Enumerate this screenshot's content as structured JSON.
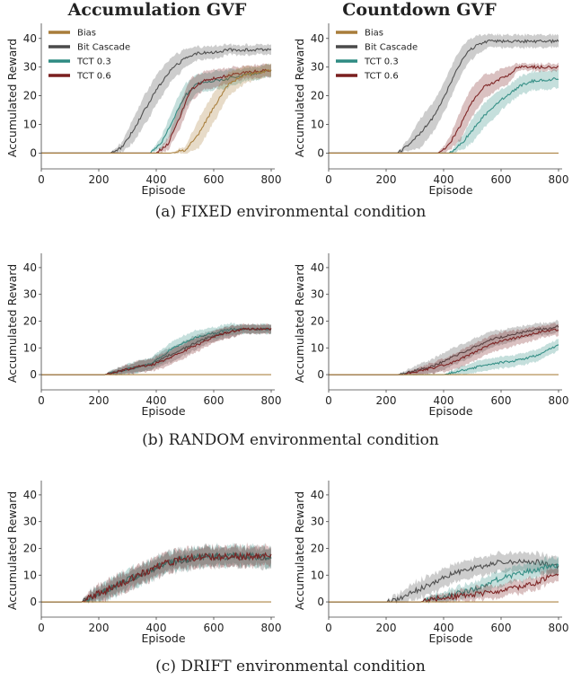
{
  "column_titles": [
    "Accumulation GVF",
    "Countdown GVF"
  ],
  "captions": [
    "(a)  FIXED environmental condition",
    "(b)  RANDOM environmental condition",
    "(c)  DRIFT environmental condition"
  ],
  "colors": {
    "Bias": "#a87d3a",
    "Bit Cascade": "#4a4a4a",
    "TCT 0.3": "#2e8b82",
    "TCT 0.6": "#7a1f1f"
  },
  "chart_data": [
    {
      "type": "line",
      "panel": "(a) Accumulation GVF",
      "xlabel": "Episode",
      "ylabel": "Accumulated Reward",
      "xlim": [
        0,
        800
      ],
      "ylim": [
        -3,
        44
      ],
      "xticks": [
        0,
        200,
        400,
        600,
        800
      ],
      "yticks": [
        0,
        10,
        20,
        30,
        40
      ],
      "legend": "top-left",
      "noise": 0.8,
      "series": [
        {
          "name": "Bias",
          "x": [
            0,
            450,
            500,
            550,
            600,
            650,
            700,
            750,
            800
          ],
          "y": [
            0,
            0,
            1,
            7,
            16,
            24,
            27,
            28,
            29
          ],
          "band": [
            0,
            0,
            1,
            5,
            5,
            4,
            3,
            2,
            2
          ]
        },
        {
          "name": "Bit Cascade",
          "x": [
            0,
            240,
            280,
            320,
            360,
            400,
            450,
            500,
            550,
            600,
            650,
            700,
            800
          ],
          "y": [
            0,
            0,
            2,
            8,
            15,
            22,
            29,
            33,
            35,
            35,
            36,
            36,
            36
          ],
          "band": [
            0,
            0,
            1.5,
            4,
            5,
            5,
            4,
            3,
            2,
            2,
            1.5,
            1.5,
            1.5
          ]
        },
        {
          "name": "TCT 0.3",
          "x": [
            0,
            380,
            420,
            460,
            500,
            540,
            580,
            650,
            700,
            800
          ],
          "y": [
            0,
            0,
            4,
            12,
            20,
            24,
            25,
            26,
            27,
            29
          ],
          "band": [
            0,
            0,
            2,
            4,
            4,
            3,
            3,
            3,
            2,
            2
          ]
        },
        {
          "name": "TCT 0.6",
          "x": [
            0,
            400,
            440,
            480,
            520,
            560,
            600,
            700,
            800
          ],
          "y": [
            0,
            0,
            3,
            12,
            22,
            25,
            26,
            28,
            29
          ],
          "band": [
            0,
            0,
            2,
            4,
            4,
            3,
            3,
            2,
            2
          ]
        }
      ]
    },
    {
      "type": "line",
      "panel": "(a) Countdown GVF",
      "xlabel": "Episode",
      "ylabel": "",
      "xlim": [
        0,
        800
      ],
      "ylim": [
        -3,
        44
      ],
      "xticks": [
        0,
        200,
        400,
        600,
        800
      ],
      "yticks": [
        0,
        10,
        20,
        30,
        40
      ],
      "legend": "top-left",
      "noise": 0.8,
      "series": [
        {
          "name": "Bias",
          "x": [
            0,
            800
          ],
          "y": [
            0,
            0
          ],
          "band": [
            0,
            0
          ]
        },
        {
          "name": "Bit Cascade",
          "x": [
            0,
            240,
            280,
            320,
            360,
            400,
            440,
            480,
            520,
            560,
            600,
            800
          ],
          "y": [
            0,
            0,
            3,
            7,
            12,
            19,
            28,
            35,
            38,
            39,
            39,
            39
          ],
          "band": [
            0,
            0,
            2,
            5,
            5,
            5,
            5,
            4,
            3,
            2,
            2,
            2
          ]
        },
        {
          "name": "TCT 0.3",
          "x": [
            0,
            420,
            460,
            500,
            540,
            580,
            620,
            660,
            700,
            800
          ],
          "y": [
            0,
            0,
            3,
            8,
            13,
            17,
            20,
            23,
            25,
            26
          ],
          "band": [
            0,
            0,
            2,
            4,
            4,
            4,
            3,
            3,
            3,
            3
          ]
        },
        {
          "name": "TCT 0.6",
          "x": [
            0,
            380,
            420,
            460,
            500,
            540,
            580,
            620,
            660,
            700,
            800
          ],
          "y": [
            0,
            0,
            3,
            10,
            18,
            23,
            25,
            27,
            30,
            30,
            30
          ],
          "band": [
            0,
            0,
            2,
            5,
            5,
            4,
            3,
            3,
            1,
            1,
            1
          ]
        }
      ]
    },
    {
      "type": "line",
      "panel": "(b) Accumulation GVF",
      "xlabel": "Episode",
      "ylabel": "Accumulated Reward",
      "xlim": [
        0,
        800
      ],
      "ylim": [
        -3,
        44
      ],
      "xticks": [
        0,
        200,
        400,
        600,
        800
      ],
      "yticks": [
        0,
        10,
        20,
        30,
        40
      ],
      "noise": 0.7,
      "series": [
        {
          "name": "Bias",
          "x": [
            0,
            800
          ],
          "y": [
            0,
            0
          ],
          "band": [
            0,
            0
          ]
        },
        {
          "name": "Bit Cascade",
          "x": [
            0,
            220,
            260,
            300,
            340,
            380,
            420,
            460,
            500,
            540,
            580,
            620,
            660,
            700,
            800
          ],
          "y": [
            0,
            0,
            1,
            2,
            3,
            4,
            6,
            8,
            10,
            12,
            14,
            15,
            16,
            17,
            17
          ],
          "band": [
            0,
            0,
            1,
            1.5,
            2,
            2,
            2.5,
            2.5,
            2.5,
            2.5,
            2,
            2,
            2,
            1.5,
            1.5
          ]
        },
        {
          "name": "TCT 0.3",
          "x": [
            0,
            220,
            260,
            300,
            340,
            380,
            420,
            460,
            500,
            540,
            580,
            620,
            660,
            700,
            800
          ],
          "y": [
            0,
            0,
            1,
            2,
            3,
            4,
            7,
            10,
            12,
            14,
            15,
            16,
            17,
            17,
            17
          ],
          "band": [
            0,
            0,
            1,
            1.5,
            2,
            2,
            2.5,
            2.5,
            2.5,
            2.5,
            2,
            2,
            2,
            1.5,
            1.5
          ]
        },
        {
          "name": "TCT 0.6",
          "x": [
            0,
            220,
            260,
            300,
            340,
            380,
            420,
            460,
            500,
            540,
            580,
            620,
            660,
            700,
            800
          ],
          "y": [
            0,
            0,
            1,
            2,
            3,
            3.5,
            5,
            7,
            9,
            11,
            13,
            15,
            16,
            17,
            17
          ],
          "band": [
            0,
            0,
            1,
            1.5,
            2,
            2,
            2.5,
            2.5,
            2.5,
            2.5,
            2,
            2,
            2,
            1.5,
            1.5
          ]
        }
      ]
    },
    {
      "type": "line",
      "panel": "(b) Countdown GVF",
      "xlabel": "Episode",
      "ylabel": "",
      "xlim": [
        0,
        800
      ],
      "ylim": [
        -3,
        44
      ],
      "xticks": [
        0,
        200,
        400,
        600,
        800
      ],
      "yticks": [
        0,
        10,
        20,
        30,
        40
      ],
      "noise": 0.7,
      "series": [
        {
          "name": "Bias",
          "x": [
            0,
            800
          ],
          "y": [
            0,
            0
          ],
          "band": [
            0,
            0
          ]
        },
        {
          "name": "Bit Cascade",
          "x": [
            0,
            240,
            280,
            320,
            360,
            400,
            440,
            480,
            520,
            560,
            600,
            640,
            680,
            720,
            760,
            800
          ],
          "y": [
            0,
            0,
            1,
            2,
            3,
            5,
            7,
            9,
            11,
            13,
            14,
            15,
            16,
            17,
            17,
            18
          ],
          "band": [
            0,
            0,
            1,
            2,
            2.5,
            3,
            3,
            3,
            3,
            3,
            2.5,
            2.5,
            2,
            2,
            2,
            2
          ]
        },
        {
          "name": "TCT 0.3",
          "x": [
            0,
            400,
            440,
            480,
            520,
            560,
            600,
            640,
            680,
            720,
            760,
            800
          ],
          "y": [
            0,
            0,
            1,
            2,
            3,
            4,
            4.5,
            5,
            6,
            7,
            9,
            11
          ],
          "band": [
            0,
            0,
            1,
            1.5,
            2,
            2,
            2,
            2,
            2,
            2,
            2,
            2
          ]
        },
        {
          "name": "TCT 0.6",
          "x": [
            0,
            260,
            300,
            340,
            380,
            420,
            460,
            500,
            540,
            580,
            620,
            660,
            700,
            740,
            800
          ],
          "y": [
            0,
            0,
            1,
            2,
            3,
            4,
            6,
            8,
            10,
            12,
            13,
            14,
            15,
            16,
            17
          ],
          "band": [
            0,
            0,
            1,
            1.5,
            2,
            2.5,
            3,
            3,
            3,
            3,
            3,
            2.5,
            2.5,
            2,
            2
          ]
        }
      ]
    },
    {
      "type": "line",
      "panel": "(c) Accumulation GVF",
      "xlabel": "Episode",
      "ylabel": "Accumulated Reward",
      "xlim": [
        0,
        800
      ],
      "ylim": [
        -3,
        44
      ],
      "xticks": [
        0,
        200,
        400,
        600,
        800
      ],
      "yticks": [
        0,
        10,
        20,
        30,
        40
      ],
      "noise": 2.2,
      "series": [
        {
          "name": "Bias",
          "x": [
            0,
            800
          ],
          "y": [
            0,
            0
          ],
          "band": [
            0,
            0
          ]
        },
        {
          "name": "Bit Cascade",
          "x": [
            0,
            140,
            180,
            220,
            260,
            300,
            340,
            380,
            420,
            460,
            500,
            560,
            620,
            700,
            800
          ],
          "y": [
            0,
            0,
            2,
            4,
            6,
            8,
            10,
            12,
            14,
            15,
            16,
            17,
            17,
            17,
            17
          ],
          "band": [
            0,
            0,
            2,
            2.5,
            3,
            3,
            3,
            3,
            3,
            3,
            3,
            3,
            3,
            3,
            3
          ]
        },
        {
          "name": "TCT 0.3",
          "x": [
            0,
            140,
            180,
            220,
            260,
            300,
            340,
            380,
            420,
            460,
            500,
            560,
            620,
            700,
            800
          ],
          "y": [
            0,
            0,
            2,
            4,
            6,
            8,
            10,
            12,
            14,
            15,
            16,
            17,
            17,
            17,
            17
          ],
          "band": [
            0,
            0,
            2,
            2.5,
            3,
            3,
            3,
            3,
            3,
            3,
            3,
            3,
            3,
            3,
            3
          ]
        },
        {
          "name": "TCT 0.6",
          "x": [
            0,
            140,
            180,
            220,
            260,
            300,
            340,
            380,
            420,
            460,
            500,
            560,
            620,
            700,
            800
          ],
          "y": [
            0,
            0,
            2,
            4,
            6,
            8,
            10,
            12,
            14,
            15,
            16,
            17,
            17,
            17,
            17
          ],
          "band": [
            0,
            0,
            2,
            2.5,
            3,
            3,
            3,
            3,
            3,
            3,
            3,
            3,
            3,
            3,
            3
          ]
        }
      ]
    },
    {
      "type": "line",
      "panel": "(c) Countdown GVF",
      "xlabel": "Episode",
      "ylabel": "",
      "xlim": [
        0,
        800
      ],
      "ylim": [
        -3,
        44
      ],
      "xticks": [
        0,
        200,
        400,
        600,
        800
      ],
      "yticks": [
        0,
        10,
        20,
        30,
        40
      ],
      "noise": 1.6,
      "series": [
        {
          "name": "Bias",
          "x": [
            0,
            800
          ],
          "y": [
            0,
            0
          ],
          "band": [
            0,
            0
          ]
        },
        {
          "name": "Bit Cascade",
          "x": [
            0,
            200,
            240,
            280,
            320,
            360,
            400,
            440,
            480,
            520,
            560,
            600,
            640,
            680,
            720,
            760,
            800
          ],
          "y": [
            0,
            0,
            1,
            3,
            5,
            7,
            9,
            11,
            12,
            13,
            14,
            15,
            15,
            15,
            15,
            14,
            13
          ],
          "band": [
            0,
            0,
            1.5,
            2.5,
            3,
            3,
            3,
            3,
            3,
            3,
            3,
            3,
            3,
            3,
            3,
            3,
            3
          ]
        },
        {
          "name": "TCT 0.3",
          "x": [
            0,
            320,
            360,
            400,
            440,
            480,
            520,
            560,
            600,
            640,
            680,
            720,
            760,
            800
          ],
          "y": [
            0,
            0,
            1,
            2,
            3,
            4,
            5,
            7,
            9,
            10,
            11,
            12,
            13,
            14
          ],
          "band": [
            0,
            0,
            1,
            1.5,
            2,
            2,
            2.5,
            2.5,
            2.5,
            2.5,
            2.5,
            2.5,
            2.5,
            2.5
          ]
        },
        {
          "name": "TCT 0.6",
          "x": [
            0,
            320,
            360,
            400,
            440,
            480,
            520,
            560,
            600,
            640,
            680,
            720,
            760,
            800
          ],
          "y": [
            0,
            0,
            1,
            1.5,
            2,
            2.5,
            3,
            3.5,
            4,
            5,
            6,
            7,
            9,
            11
          ],
          "band": [
            0,
            0,
            1,
            1.5,
            1.5,
            2,
            2,
            2,
            2,
            2,
            2,
            2,
            2,
            2
          ]
        }
      ]
    }
  ]
}
